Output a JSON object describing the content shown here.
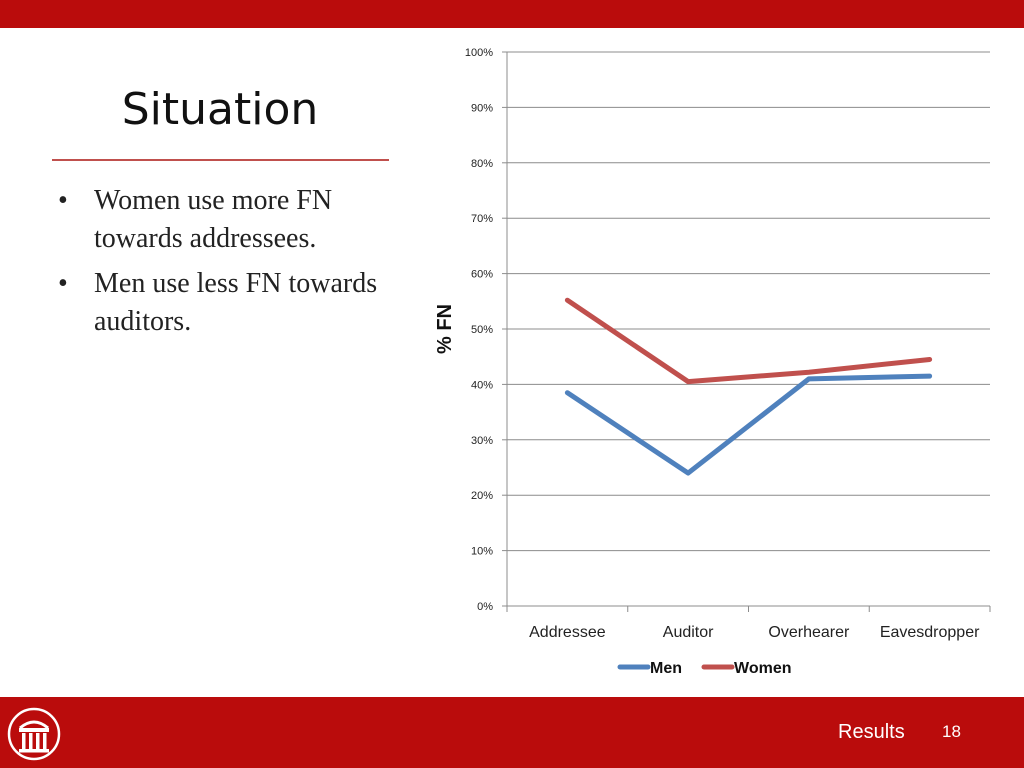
{
  "slide": {
    "title": "Situation",
    "bullets": [
      "Women use more FN towards addressees.",
      "Men use less FN towards auditors."
    ],
    "bullet_symbol": "•",
    "footer_label": "Results",
    "page_number": "18",
    "colors": {
      "bar": "#BA0C0C",
      "rule": "#C0504D"
    }
  },
  "chart_data": {
    "type": "line",
    "title": "",
    "xlabel": "",
    "ylabel": "% FN",
    "categories": [
      "Addressee",
      "Auditor",
      "Overhearer",
      "Eavesdropper"
    ],
    "ylim": [
      0,
      100
    ],
    "yticks": [
      0,
      10,
      20,
      30,
      40,
      50,
      60,
      70,
      80,
      90,
      100
    ],
    "ytick_labels": [
      "0%",
      "10%",
      "20%",
      "30%",
      "40%",
      "50%",
      "60%",
      "70%",
      "80%",
      "90%",
      "100%"
    ],
    "grid": true,
    "legend_position": "bottom",
    "series": [
      {
        "name": "Men",
        "color": "#4F81BD",
        "values": [
          38.5,
          24,
          41,
          41.5
        ]
      },
      {
        "name": "Women",
        "color": "#C0504D",
        "values": [
          55.2,
          40.5,
          42.2,
          44.5
        ]
      }
    ]
  }
}
